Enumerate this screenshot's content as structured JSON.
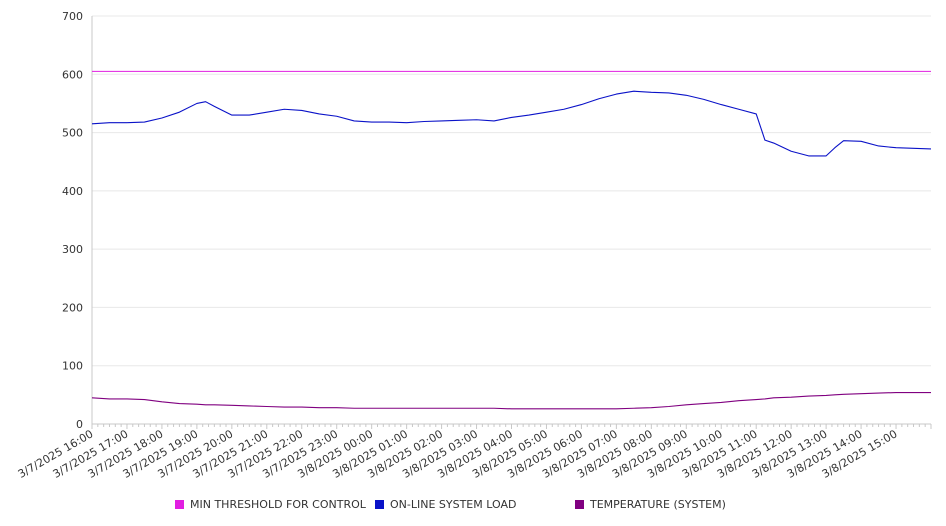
{
  "colors": {
    "threshold": "#e11ee1",
    "load": "#0a12c8",
    "temperature": "#800080",
    "grid": "#e8e8e8",
    "axis": "#c8c8c8"
  },
  "chart_data": {
    "type": "line",
    "title": "",
    "xlabel": "",
    "ylabel": "",
    "ylim": [
      0,
      700
    ],
    "yticks": [
      0,
      100,
      200,
      300,
      400,
      500,
      600,
      700
    ],
    "x_start": "3/7/2025 16:00",
    "x_end": "3/8/2025 16:00",
    "xtick_labels": [
      "3/7/2025 16:00",
      "3/7/2025 17:00",
      "3/7/2025 18:00",
      "3/7/2025 19:00",
      "3/7/2025 20:00",
      "3/7/2025 21:00",
      "3/7/2025 22:00",
      "3/7/2025 23:00",
      "3/8/2025 00:00",
      "3/8/2025 01:00",
      "3/8/2025 02:00",
      "3/8/2025 03:00",
      "3/8/2025 04:00",
      "3/8/2025 05:00",
      "3/8/2025 06:00",
      "3/8/2025 07:00",
      "3/8/2025 08:00",
      "3/8/2025 09:00",
      "3/8/2025 10:00",
      "3/8/2025 11:00",
      "3/8/2025 12:00",
      "3/8/2025 13:00",
      "3/8/2025 14:00",
      "3/8/2025 15:00"
    ],
    "grid": true,
    "legend_position": "bottom",
    "x": [
      "3/7/2025 16:00",
      "3/7/2025 16:30",
      "3/7/2025 17:00",
      "3/7/2025 17:30",
      "3/7/2025 18:00",
      "3/7/2025 18:30",
      "3/7/2025 19:00",
      "3/7/2025 19:15",
      "3/7/2025 19:30",
      "3/7/2025 20:00",
      "3/7/2025 20:30",
      "3/7/2025 21:00",
      "3/7/2025 21:30",
      "3/7/2025 22:00",
      "3/7/2025 22:30",
      "3/7/2025 23:00",
      "3/7/2025 23:30",
      "3/8/2025 00:00",
      "3/8/2025 00:30",
      "3/8/2025 01:00",
      "3/8/2025 01:30",
      "3/8/2025 02:00",
      "3/8/2025 02:30",
      "3/8/2025 03:00",
      "3/8/2025 03:30",
      "3/8/2025 04:00",
      "3/8/2025 04:30",
      "3/8/2025 05:00",
      "3/8/2025 05:30",
      "3/8/2025 06:00",
      "3/8/2025 06:30",
      "3/8/2025 07:00",
      "3/8/2025 07:30",
      "3/8/2025 08:00",
      "3/8/2025 08:30",
      "3/8/2025 09:00",
      "3/8/2025 09:30",
      "3/8/2025 10:00",
      "3/8/2025 10:30",
      "3/8/2025 11:00",
      "3/8/2025 11:15",
      "3/8/2025 11:30",
      "3/8/2025 12:00",
      "3/8/2025 12:30",
      "3/8/2025 13:00",
      "3/8/2025 13:15",
      "3/8/2025 13:30",
      "3/8/2025 14:00",
      "3/8/2025 14:30",
      "3/8/2025 15:00",
      "3/8/2025 15:30",
      "3/8/2025 16:00"
    ],
    "series": [
      {
        "name": "MIN THRESHOLD FOR CONTROL",
        "color": "#e11ee1",
        "values": [
          605,
          605,
          605,
          605,
          605,
          605,
          605,
          605,
          605,
          605,
          605,
          605,
          605,
          605,
          605,
          605,
          605,
          605,
          605,
          605,
          605,
          605,
          605,
          605,
          605,
          605,
          605,
          605,
          605,
          605,
          605,
          605,
          605,
          605,
          605,
          605,
          605,
          605,
          605,
          605,
          605,
          605,
          605,
          605,
          605,
          605,
          605,
          605,
          605,
          605,
          605,
          605
        ]
      },
      {
        "name": "ON-LINE SYSTEM LOAD",
        "color": "#0a12c8",
        "values": [
          515,
          517,
          517,
          518,
          525,
          535,
          550,
          553,
          545,
          530,
          530,
          535,
          540,
          538,
          532,
          528,
          520,
          518,
          518,
          517,
          519,
          520,
          521,
          522,
          520,
          526,
          530,
          535,
          540,
          548,
          558,
          566,
          571,
          569,
          568,
          564,
          557,
          548,
          540,
          532,
          487,
          482,
          468,
          460,
          460,
          474,
          486,
          485,
          477,
          474,
          473,
          472
        ]
      },
      {
        "name": "TEMPERATURE (SYSTEM)",
        "color": "#800080",
        "values": [
          45,
          43,
          43,
          42,
          38,
          35,
          34,
          33,
          33,
          32,
          31,
          30,
          29,
          29,
          28,
          28,
          27,
          27,
          27,
          27,
          27,
          27,
          27,
          27,
          27,
          26,
          26,
          26,
          26,
          26,
          26,
          26,
          27,
          28,
          30,
          33,
          35,
          37,
          40,
          42,
          43,
          45,
          46,
          48,
          49,
          50,
          51,
          52,
          53,
          54,
          54,
          54
        ]
      }
    ]
  }
}
